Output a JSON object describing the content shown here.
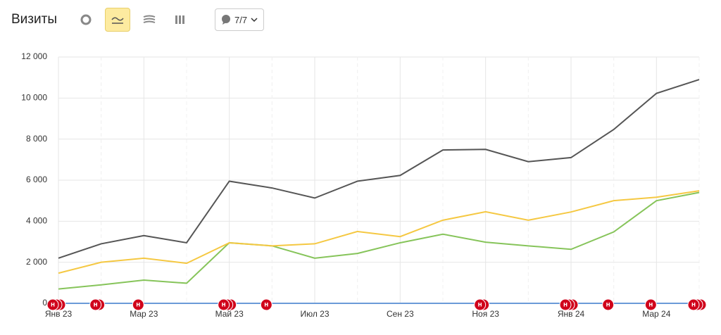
{
  "header": {
    "title": "Визиты",
    "comments": "7/7"
  },
  "chart_data": {
    "type": "line",
    "categories": [
      "Янв 23",
      null,
      "Мар 23",
      null,
      "Май 23",
      null,
      "Июл 23",
      null,
      "Сен 23",
      null,
      "Ноя 23",
      null,
      "Янв 24",
      null,
      "Мар 24",
      null
    ],
    "series": [
      {
        "color": "#555555",
        "values": [
          2200,
          2900,
          3300,
          2950,
          5950,
          5620,
          5130,
          5950,
          6230,
          7470,
          7500,
          6900,
          7100,
          8470,
          10230,
          10900
        ]
      },
      {
        "color": "#f5c842",
        "values": [
          1470,
          2000,
          2200,
          1950,
          2950,
          2800,
          2900,
          3500,
          3250,
          4050,
          4460,
          4050,
          4450,
          5000,
          5170,
          5480
        ]
      },
      {
        "color": "#86c45a",
        "values": [
          700,
          900,
          1130,
          980,
          2950,
          2800,
          2200,
          2430,
          2950,
          3370,
          2980,
          2800,
          2630,
          3480,
          5000,
          5400
        ]
      },
      {
        "color": "#6b9bd8",
        "values": [
          0,
          0,
          0,
          0,
          0,
          0,
          0,
          0,
          0,
          0,
          0,
          0,
          0,
          0,
          0,
          0
        ]
      }
    ],
    "ylim": [
      0,
      12000
    ],
    "yticks": [
      0,
      {
        "value": 2000,
        "label": "2 000"
      },
      {
        "value": 4000,
        "label": "4 000"
      },
      {
        "value": 6000,
        "label": "6 000"
      },
      {
        "value": 8000,
        "label": "8 000"
      },
      {
        "value": 10000,
        "label": "10 000"
      },
      {
        "value": 12000,
        "label": "12 000"
      }
    ],
    "grid": true,
    "annotations": [
      {
        "at": 0,
        "count": 3,
        "label": "н"
      },
      {
        "at": 1,
        "count": 2,
        "label": "н"
      },
      {
        "at": 2,
        "count": 1,
        "label": "н"
      },
      {
        "at": 4,
        "count": 3,
        "label": "н"
      },
      {
        "at": 5,
        "count": 1,
        "label": "н"
      },
      {
        "at": 10,
        "count": 2,
        "label": "н"
      },
      {
        "at": 12,
        "count": 3,
        "label": "н"
      },
      {
        "at": 13,
        "count": 1,
        "label": "н"
      },
      {
        "at": 14,
        "count": 1,
        "label": "н"
      },
      {
        "at": 15,
        "count": 3,
        "label": "н"
      }
    ]
  }
}
